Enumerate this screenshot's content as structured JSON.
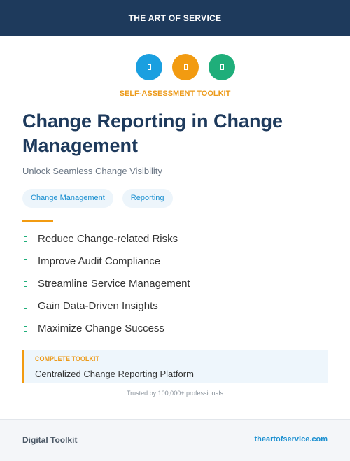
{
  "header": {
    "brand": "THE ART OF SERVICE"
  },
  "badge": "SELF-ASSESSMENT TOOLKIT",
  "title": "Change Reporting in Change Management",
  "subtitle": "Unlock Seamless Change Visibility",
  "tags": [
    "Change Management",
    "Reporting"
  ],
  "benefits": [
    "Reduce Change-related Risks",
    "Improve Audit Compliance",
    "Streamline Service Management",
    "Gain Data-Driven Insights",
    "Maximize Change Success"
  ],
  "callout": {
    "label": "COMPLETE TOOLKIT",
    "text": "Centralized Change Reporting Platform"
  },
  "trust": "Trusted by 100,000+ professionals",
  "footer": {
    "left": "Digital Toolkit",
    "right": "theartofservice.com"
  }
}
